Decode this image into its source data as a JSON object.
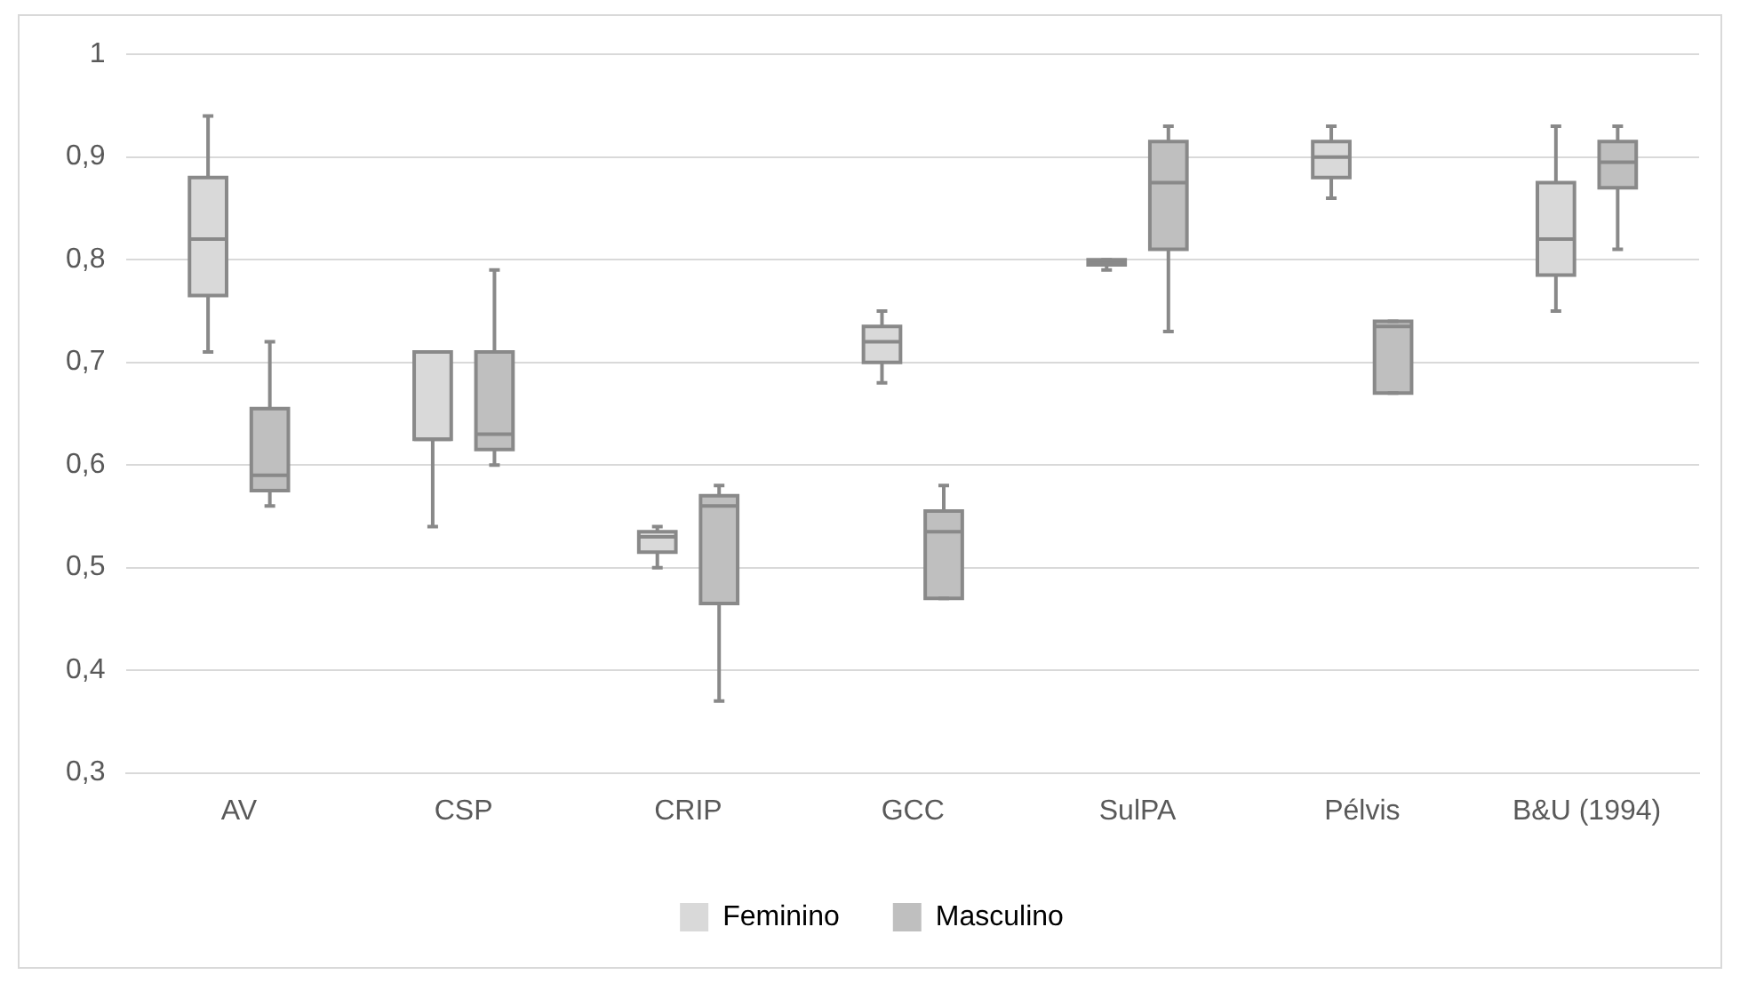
{
  "chart_data": {
    "type": "box",
    "categories": [
      "AV",
      "CSP",
      "CRIP",
      "GCC",
      "SulPA",
      "Pélvis",
      "B&U (1994)"
    ],
    "series": [
      {
        "name": "Feminino",
        "color": "#d9d9d9",
        "boxes": [
          {
            "low": 0.71,
            "q1": 0.765,
            "median": 0.82,
            "q3": 0.88,
            "high": 0.94
          },
          {
            "low": 0.54,
            "q1": 0.625,
            "median": 0.625,
            "q3": 0.71,
            "high": 0.71
          },
          {
            "low": 0.5,
            "q1": 0.515,
            "median": 0.53,
            "q3": 0.535,
            "high": 0.54
          },
          {
            "low": 0.68,
            "q1": 0.7,
            "median": 0.72,
            "q3": 0.735,
            "high": 0.75
          },
          {
            "low": 0.79,
            "q1": 0.795,
            "median": 0.797,
            "q3": 0.8,
            "high": 0.8
          },
          {
            "low": 0.86,
            "q1": 0.88,
            "median": 0.9,
            "q3": 0.915,
            "high": 0.93
          },
          {
            "low": 0.75,
            "q1": 0.785,
            "median": 0.82,
            "q3": 0.875,
            "high": 0.93
          }
        ]
      },
      {
        "name": "Masculino",
        "color": "#bfbfbf",
        "boxes": [
          {
            "low": 0.56,
            "q1": 0.575,
            "median": 0.59,
            "q3": 0.655,
            "high": 0.72
          },
          {
            "low": 0.6,
            "q1": 0.615,
            "median": 0.63,
            "q3": 0.71,
            "high": 0.79
          },
          {
            "low": 0.37,
            "q1": 0.465,
            "median": 0.56,
            "q3": 0.57,
            "high": 0.58
          },
          {
            "low": 0.47,
            "q1": 0.47,
            "median": 0.535,
            "q3": 0.555,
            "high": 0.58
          },
          {
            "low": 0.73,
            "q1": 0.81,
            "median": 0.875,
            "q3": 0.915,
            "high": 0.93
          },
          {
            "low": 0.67,
            "q1": 0.67,
            "median": 0.735,
            "q3": 0.74,
            "high": 0.74
          },
          {
            "low": 0.81,
            "q1": 0.87,
            "median": 0.895,
            "q3": 0.915,
            "high": 0.93
          }
        ]
      }
    ],
    "ylim": [
      0.3,
      1
    ],
    "yticks": [
      {
        "value": 0.3,
        "label": "0,3"
      },
      {
        "value": 0.4,
        "label": "0,4"
      },
      {
        "value": 0.5,
        "label": "0,5"
      },
      {
        "value": 0.6,
        "label": "0,6"
      },
      {
        "value": 0.7,
        "label": "0,7"
      },
      {
        "value": 0.8,
        "label": "0,8"
      },
      {
        "value": 0.9,
        "label": "0,9"
      },
      {
        "value": 1,
        "label": "1"
      }
    ],
    "grid": "y",
    "legend": "bottom"
  }
}
